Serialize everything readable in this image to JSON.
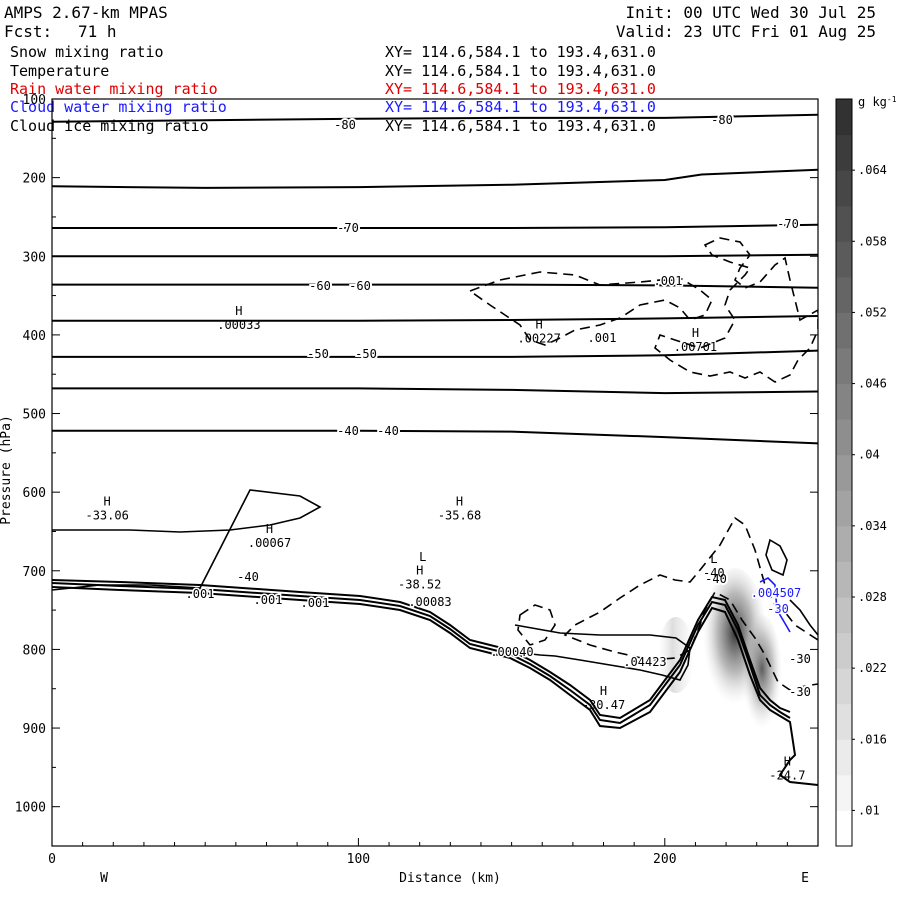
{
  "header": {
    "model": "AMPS 2.67-km MPAS",
    "fcst_label": "Fcst:",
    "fcst_value": "71 h",
    "init": "Init: 00 UTC Wed 30 Jul 25",
    "valid": "Valid: 23 UTC Fri 01 Aug 25"
  },
  "legend": [
    {
      "name": "Snow mixing ratio",
      "xy": "XY= 114.6,584.1 to 193.4,631.0",
      "color": "#000000"
    },
    {
      "name": "Temperature",
      "xy": "XY= 114.6,584.1 to 193.4,631.0",
      "color": "#000000"
    },
    {
      "name": "Rain water mixing ratio",
      "xy": "XY= 114.6,584.1 to 193.4,631.0",
      "color": "#e00000"
    },
    {
      "name": "Cloud water mixing ratio",
      "xy": "XY= 114.6,584.1 to 193.4,631.0",
      "color": "#1a1aff"
    },
    {
      "name": "Cloud ice mixing ratio",
      "xy": "XY= 114.6,584.1 to 193.4,631.0",
      "color": "#000000"
    }
  ],
  "chart_data": {
    "type": "contour-cross-section",
    "xlabel": "Distance (km)",
    "ylabel": "Pressure (hPa)",
    "xlim": [
      0,
      250
    ],
    "ylim": [
      1050,
      100
    ],
    "x_ticks": [
      "0",
      "100",
      "200"
    ],
    "x_tick_values": [
      0,
      100,
      200
    ],
    "y_ticks": [
      "100",
      "200",
      "300",
      "400",
      "500",
      "600",
      "700",
      "800",
      "900",
      "1000"
    ],
    "y_tick_values": [
      100,
      200,
      300,
      400,
      500,
      600,
      700,
      800,
      900,
      1000
    ],
    "west_label": "W",
    "east_label": "E",
    "colorbar": {
      "unit": "g kg",
      "unit_exp": "-1",
      "ticks": [
        ".01",
        ".016",
        ".022",
        ".028",
        ".034",
        ".04",
        ".046",
        ".052",
        ".058",
        ".064"
      ],
      "values": [
        0.01,
        0.016,
        0.022,
        0.028,
        0.034,
        0.04,
        0.046,
        0.052,
        0.058,
        0.064
      ],
      "range": [
        0.007,
        0.07
      ]
    },
    "temperature_isotherms": [
      {
        "label": "-80",
        "points": [
          [
            0,
            129
          ],
          [
            50,
            127
          ],
          [
            100,
            125
          ],
          [
            150,
            124
          ],
          [
            200,
            124
          ],
          [
            250,
            120
          ]
        ]
      },
      {
        "label": "",
        "points": [
          [
            0,
            211
          ],
          [
            50,
            213
          ],
          [
            100,
            212
          ],
          [
            150,
            209
          ],
          [
            200,
            203
          ],
          [
            212,
            196
          ],
          [
            250,
            190
          ]
        ]
      },
      {
        "label": "-70",
        "points": [
          [
            0,
            264
          ],
          [
            100,
            264
          ],
          [
            150,
            264
          ],
          [
            200,
            263
          ],
          [
            250,
            260
          ]
        ]
      },
      {
        "label": "",
        "points": [
          [
            0,
            300
          ],
          [
            100,
            300
          ],
          [
            150,
            300
          ],
          [
            200,
            300
          ],
          [
            250,
            298
          ]
        ]
      },
      {
        "label": "-60",
        "points": [
          [
            0,
            336
          ],
          [
            100,
            336
          ],
          [
            150,
            336
          ],
          [
            200,
            337
          ],
          [
            250,
            340
          ]
        ]
      },
      {
        "label": "",
        "points": [
          [
            0,
            382
          ],
          [
            100,
            382
          ],
          [
            150,
            381
          ],
          [
            200,
            379
          ],
          [
            250,
            376
          ]
        ]
      },
      {
        "label": "-50",
        "points": [
          [
            0,
            428
          ],
          [
            100,
            428
          ],
          [
            150,
            428
          ],
          [
            200,
            426
          ],
          [
            250,
            420
          ]
        ]
      },
      {
        "label": "",
        "points": [
          [
            0,
            468
          ],
          [
            100,
            468
          ],
          [
            150,
            470
          ],
          [
            200,
            474
          ],
          [
            250,
            472
          ]
        ]
      },
      {
        "label": "-40",
        "points": [
          [
            0,
            522
          ],
          [
            100,
            522
          ],
          [
            150,
            523
          ],
          [
            200,
            530
          ],
          [
            250,
            538
          ]
        ]
      }
    ],
    "temperature_values": [
      -80,
      -70,
      -60,
      -50,
      -40,
      -30
    ],
    "extrema_labels": [
      {
        "type": "H",
        "value": ".00033",
        "x": 61,
        "p": 385
      },
      {
        "type": "H",
        "value": ".00227",
        "x": 159,
        "p": 402
      },
      {
        "type": "H",
        "value": ".00701",
        "x": 210,
        "p": 413
      },
      {
        "type": "H",
        "value": "-33.06",
        "x": 18,
        "p": 627
      },
      {
        "type": "H",
        "value": ".00067",
        "x": 71,
        "p": 662
      },
      {
        "type": "H",
        "value": "-35.68",
        "x": 133,
        "p": 627
      },
      {
        "type": "L",
        "value": "",
        "x": 121,
        "p": 698
      },
      {
        "type": "H",
        "value": "-38.52",
        "x": 120,
        "p": 715
      },
      {
        "type": "L",
        "value": "-40",
        "x": 216,
        "p": 700
      },
      {
        "type": "H",
        "value": "-30.47",
        "x": 180,
        "p": 868
      },
      {
        "type": "H",
        "value": "-24.7",
        "x": 240,
        "p": 958
      }
    ],
    "contour_labels": [
      ".001",
      ".001",
      ".001",
      ".001",
      ".001",
      ".00083",
      ".00040",
      ".04423",
      ".004507",
      "-30",
      "-30"
    ]
  }
}
